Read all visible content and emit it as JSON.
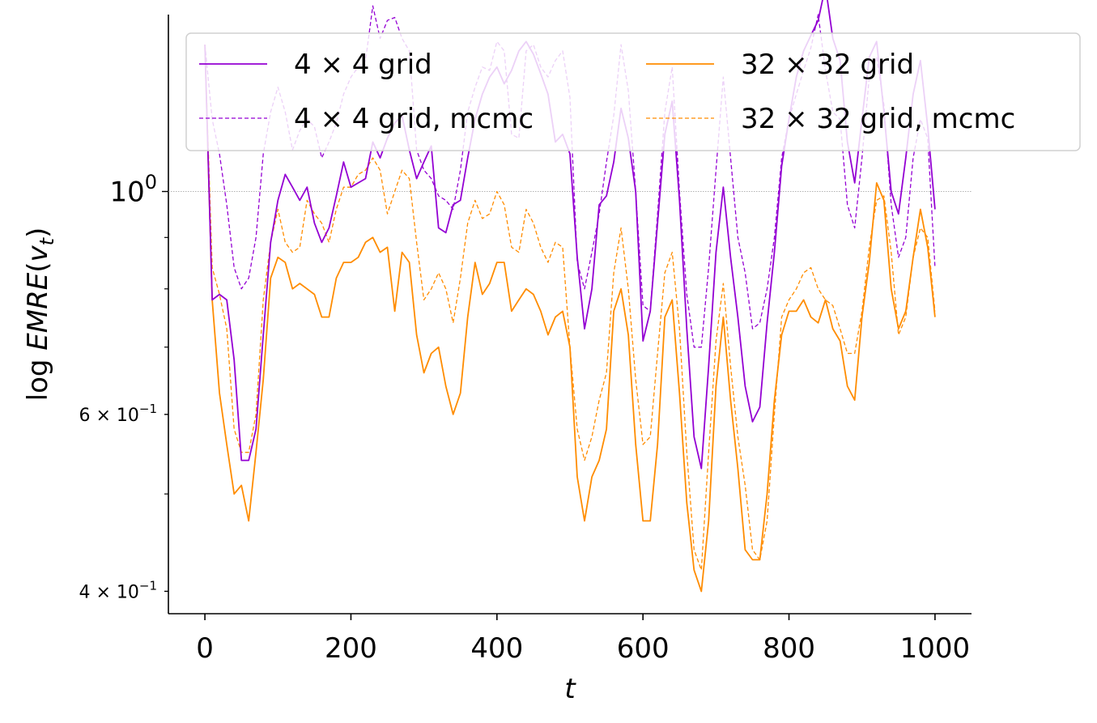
{
  "chart_data": {
    "type": "line",
    "xlabel": "t",
    "ylabel_prefix": "log ",
    "ylabel_var": "EMRE",
    "ylabel_arg": "v",
    "ylabel_sub": "t",
    "yscale": "log",
    "xlim": [
      -50,
      1050
    ],
    "ylim": [
      0.38,
      1.5
    ],
    "x_ticks": [
      0,
      200,
      400,
      600,
      800,
      1000
    ],
    "x_tick_labels": [
      "0",
      "200",
      "400",
      "600",
      "800",
      "1000"
    ],
    "y_ticks": [
      {
        "value": 1.0,
        "mantissa": "",
        "base": "10",
        "exp": "0",
        "major": true
      },
      {
        "value": 0.6,
        "mantissa": "6 × ",
        "base": "10",
        "exp": "−1",
        "major": false
      },
      {
        "value": 0.4,
        "mantissa": "4 × ",
        "base": "10",
        "exp": "−1",
        "major": false
      }
    ],
    "y_minor_ticks_unlabeled": [
      0.5,
      0.7,
      0.8,
      0.9
    ],
    "reference_line": 1.0,
    "legend": {
      "placement": "top",
      "columns": 2
    },
    "colors": {
      "purple": "#9400D3",
      "orange": "#FF8C00"
    },
    "x": [
      0,
      10,
      20,
      30,
      40,
      50,
      60,
      70,
      80,
      90,
      100,
      110,
      120,
      130,
      140,
      150,
      160,
      170,
      180,
      190,
      200,
      210,
      220,
      230,
      240,
      250,
      260,
      270,
      280,
      290,
      300,
      310,
      320,
      330,
      340,
      350,
      360,
      370,
      380,
      390,
      400,
      410,
      420,
      430,
      440,
      450,
      460,
      470,
      480,
      490,
      500,
      510,
      520,
      530,
      540,
      550,
      560,
      570,
      580,
      590,
      600,
      610,
      620,
      630,
      640,
      650,
      660,
      670,
      680,
      690,
      700,
      710,
      720,
      730,
      740,
      750,
      760,
      770,
      780,
      790,
      800,
      810,
      820,
      830,
      840,
      850,
      860,
      870,
      880,
      890,
      900,
      910,
      920,
      930,
      940,
      950,
      960,
      970,
      980,
      990,
      1000
    ],
    "series": [
      {
        "name": "4 × 4 grid",
        "color": "#9400D3",
        "dash": "solid",
        "values": [
          1.4,
          0.78,
          0.79,
          0.78,
          0.68,
          0.54,
          0.54,
          0.58,
          0.72,
          0.89,
          0.98,
          1.04,
          1.01,
          0.98,
          1.01,
          0.93,
          0.89,
          0.92,
          0.99,
          1.07,
          1.01,
          1.02,
          1.03,
          1.12,
          1.08,
          1.13,
          1.17,
          1.19,
          1.1,
          1.03,
          1.07,
          1.11,
          0.92,
          0.91,
          0.97,
          0.98,
          1.08,
          1.18,
          1.25,
          1.3,
          1.33,
          1.28,
          1.32,
          1.38,
          1.41,
          1.37,
          1.31,
          1.25,
          1.12,
          1.14,
          1.09,
          0.86,
          0.73,
          0.8,
          0.97,
          0.99,
          1.07,
          1.21,
          1.13,
          1.0,
          0.71,
          0.76,
          0.93,
          1.14,
          1.23,
          0.98,
          0.73,
          0.57,
          0.53,
          0.67,
          0.87,
          1.01,
          0.86,
          0.75,
          0.64,
          0.59,
          0.61,
          0.74,
          0.87,
          1.06,
          1.18,
          1.3,
          1.38,
          1.43,
          1.48,
          1.6,
          1.42,
          1.35,
          1.12,
          1.02,
          1.18,
          1.36,
          1.41,
          1.2,
          1.0,
          0.95,
          1.08,
          1.25,
          1.35,
          1.16,
          0.96
        ]
      },
      {
        "name": "4 × 4 grid, mcmc",
        "color": "#9400D3",
        "dash": "dashed",
        "values": [
          1.4,
          1.18,
          1.09,
          0.97,
          0.84,
          0.8,
          0.82,
          0.9,
          1.09,
          1.2,
          1.27,
          1.2,
          1.1,
          1.15,
          1.18,
          1.16,
          1.08,
          1.12,
          1.17,
          1.25,
          1.3,
          1.33,
          1.35,
          1.53,
          1.42,
          1.48,
          1.49,
          1.42,
          1.38,
          1.1,
          1.05,
          1.03,
          0.99,
          0.98,
          0.96,
          1.05,
          1.2,
          1.27,
          1.33,
          1.32,
          1.41,
          1.38,
          1.14,
          1.13,
          1.38,
          1.4,
          1.33,
          1.3,
          1.35,
          1.38,
          1.24,
          0.85,
          0.8,
          0.87,
          0.95,
          1.07,
          1.19,
          1.4,
          1.26,
          1.0,
          0.77,
          0.76,
          0.95,
          1.2,
          1.33,
          1.0,
          0.79,
          0.7,
          0.7,
          0.84,
          1.05,
          1.3,
          1.08,
          0.9,
          0.83,
          0.73,
          0.74,
          0.8,
          0.9,
          1.08,
          1.18,
          1.25,
          1.32,
          1.39,
          1.5,
          1.32,
          1.2,
          1.18,
          0.97,
          0.92,
          1.08,
          1.3,
          1.36,
          1.22,
          0.97,
          0.86,
          0.9,
          1.08,
          1.18,
          1.13,
          0.84
        ]
      },
      {
        "name": "32 × 32 grid",
        "color": "#FF8C00",
        "dash": "solid",
        "values": [
          1.4,
          0.78,
          0.63,
          0.56,
          0.5,
          0.51,
          0.47,
          0.55,
          0.65,
          0.82,
          0.86,
          0.85,
          0.8,
          0.81,
          0.8,
          0.79,
          0.75,
          0.75,
          0.82,
          0.85,
          0.85,
          0.86,
          0.89,
          0.9,
          0.87,
          0.88,
          0.76,
          0.87,
          0.85,
          0.72,
          0.66,
          0.69,
          0.7,
          0.64,
          0.6,
          0.63,
          0.75,
          0.85,
          0.79,
          0.81,
          0.85,
          0.85,
          0.76,
          0.78,
          0.8,
          0.79,
          0.76,
          0.72,
          0.75,
          0.76,
          0.7,
          0.52,
          0.47,
          0.52,
          0.54,
          0.58,
          0.76,
          0.8,
          0.72,
          0.56,
          0.47,
          0.47,
          0.56,
          0.75,
          0.78,
          0.63,
          0.49,
          0.42,
          0.4,
          0.47,
          0.64,
          0.75,
          0.62,
          0.53,
          0.44,
          0.43,
          0.43,
          0.5,
          0.62,
          0.72,
          0.76,
          0.76,
          0.78,
          0.75,
          0.74,
          0.78,
          0.73,
          0.71,
          0.64,
          0.62,
          0.75,
          0.85,
          1.02,
          0.98,
          0.8,
          0.73,
          0.76,
          0.86,
          0.96,
          0.88,
          0.75
        ]
      },
      {
        "name": "32 × 32 grid, mcmc",
        "color": "#FF8C00",
        "dash": "dashed",
        "values": [
          1.4,
          0.84,
          0.79,
          0.73,
          0.58,
          0.55,
          0.55,
          0.6,
          0.78,
          0.89,
          0.96,
          0.89,
          0.87,
          0.88,
          0.98,
          0.95,
          0.93,
          0.89,
          0.96,
          1.01,
          1.01,
          1.04,
          1.05,
          1.08,
          1.05,
          0.95,
          1.0,
          1.05,
          1.03,
          0.89,
          0.78,
          0.8,
          0.83,
          0.8,
          0.74,
          0.82,
          0.93,
          0.98,
          0.94,
          0.95,
          1.0,
          0.97,
          0.88,
          0.87,
          0.96,
          0.93,
          0.88,
          0.85,
          0.89,
          0.88,
          0.7,
          0.58,
          0.54,
          0.57,
          0.62,
          0.66,
          0.83,
          0.92,
          0.8,
          0.65,
          0.56,
          0.57,
          0.69,
          0.83,
          0.87,
          0.73,
          0.55,
          0.44,
          0.42,
          0.55,
          0.71,
          0.81,
          0.67,
          0.57,
          0.51,
          0.44,
          0.43,
          0.47,
          0.6,
          0.75,
          0.78,
          0.8,
          0.83,
          0.84,
          0.8,
          0.78,
          0.77,
          0.73,
          0.69,
          0.69,
          0.76,
          0.88,
          0.98,
          0.99,
          0.87,
          0.72,
          0.75,
          0.86,
          0.92,
          0.9,
          0.76
        ]
      }
    ]
  }
}
